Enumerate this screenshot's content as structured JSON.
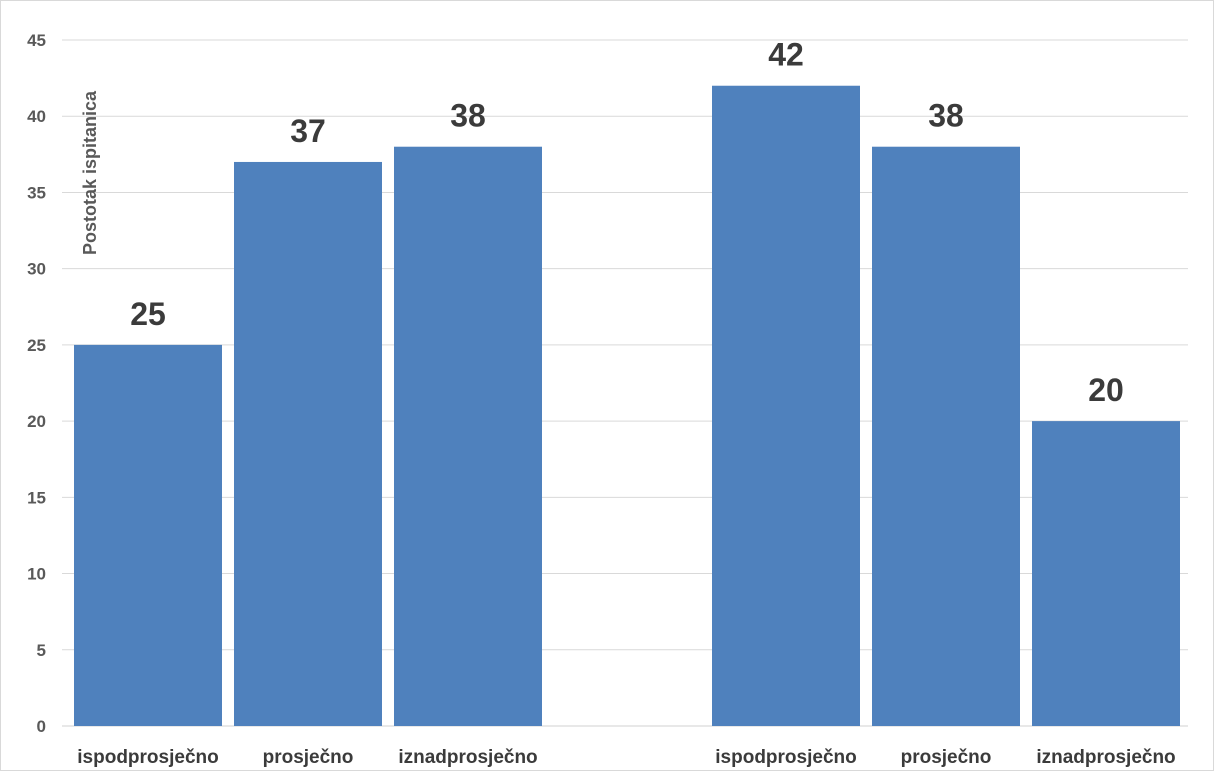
{
  "chart_data": {
    "type": "bar",
    "title": "",
    "xlabel": "",
    "ylabel": "Postotak ispitanica",
    "ylim": [
      0,
      45
    ],
    "yticks": [
      0,
      5,
      10,
      15,
      20,
      25,
      30,
      35,
      40,
      45
    ],
    "grid": true,
    "legend": "none",
    "bar_color": "#4f81bd",
    "groups": [
      {
        "categories": [
          "ispodprosječno",
          "prosječno",
          "iznadprosječno"
        ],
        "values": [
          25,
          37,
          38
        ]
      },
      {
        "categories": [
          "ispodprosječno",
          "prosječno",
          "iznadprosječno"
        ],
        "values": [
          42,
          38,
          20
        ]
      }
    ]
  }
}
